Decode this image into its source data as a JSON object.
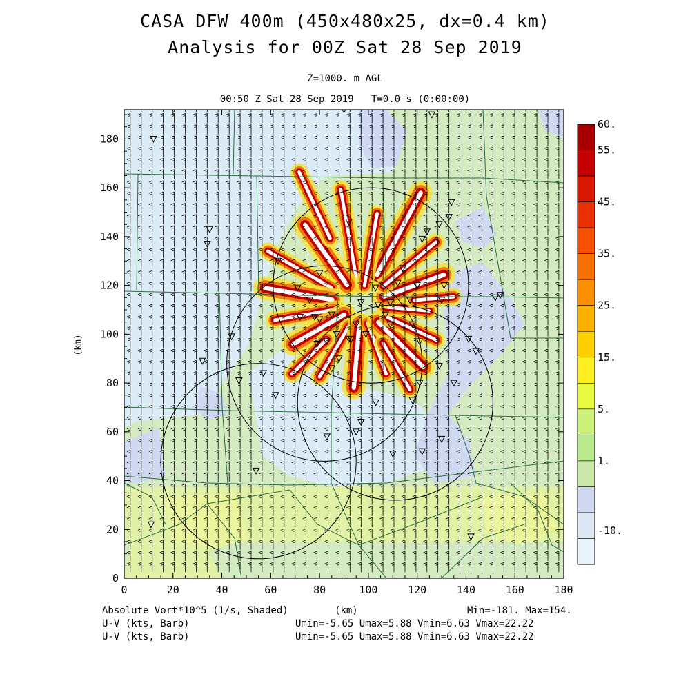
{
  "header": {
    "title_line1": "CASA DFW 400m (450x480x25, dx=0.4 km)",
    "title_line2": "Analysis for 00Z Sat 28 Sep 2019",
    "level": "Z=1000. m AGL",
    "valid_time": "00:50 Z Sat 28 Sep 2019",
    "forecast_time": "T=0.0 s (0:00:00)"
  },
  "map": {
    "x_axis_label": "(km)",
    "y_axis_label": "(km)",
    "x_range_km": [
      0,
      180
    ],
    "y_range_km": [
      0,
      192
    ],
    "x_ticks": [
      0,
      20,
      40,
      60,
      80,
      100,
      120,
      140,
      160,
      180
    ],
    "y_ticks": [
      0,
      20,
      40,
      60,
      80,
      100,
      120,
      140,
      160,
      180
    ],
    "radar_circles_km": [
      {
        "cx": 101,
        "cy": 120,
        "r": 40
      },
      {
        "cx": 82,
        "cy": 88,
        "r": 40
      },
      {
        "cx": 111,
        "cy": 72,
        "r": 40
      },
      {
        "cx": 55,
        "cy": 48,
        "r": 40
      }
    ],
    "stations_km": [
      [
        12,
        180
      ],
      [
        90,
        192
      ],
      [
        126,
        190
      ],
      [
        35,
        143
      ],
      [
        34,
        137
      ],
      [
        44,
        99
      ],
      [
        32,
        89
      ],
      [
        47,
        81
      ],
      [
        57,
        84
      ],
      [
        62,
        75
      ],
      [
        63,
        130
      ],
      [
        71,
        119
      ],
      [
        72,
        107
      ],
      [
        76,
        114
      ],
      [
        78,
        107
      ],
      [
        79,
        96
      ],
      [
        80,
        106
      ],
      [
        80,
        125
      ],
      [
        83,
        97
      ],
      [
        85,
        108
      ],
      [
        85,
        86
      ],
      [
        87,
        100
      ],
      [
        88,
        90
      ],
      [
        92,
        98
      ],
      [
        93,
        98
      ],
      [
        95,
        104
      ],
      [
        97,
        113
      ],
      [
        99,
        100
      ],
      [
        103,
        119
      ],
      [
        104,
        112
      ],
      [
        107,
        108
      ],
      [
        109,
        104
      ],
      [
        109,
        113
      ],
      [
        112,
        121
      ],
      [
        114,
        127
      ],
      [
        117,
        114
      ],
      [
        118,
        104
      ],
      [
        121,
        97
      ],
      [
        120,
        120
      ],
      [
        122,
        139
      ],
      [
        124,
        142
      ],
      [
        129,
        145
      ],
      [
        130,
        114
      ],
      [
        129,
        87
      ],
      [
        131,
        120
      ],
      [
        133,
        148
      ],
      [
        134,
        154
      ],
      [
        135,
        80
      ],
      [
        141,
        98
      ],
      [
        144,
        93
      ],
      [
        154,
        116
      ],
      [
        152,
        115
      ],
      [
        121,
        80
      ],
      [
        118,
        73
      ],
      [
        103,
        72
      ],
      [
        97,
        64
      ],
      [
        95,
        60
      ],
      [
        110,
        51
      ],
      [
        122,
        52
      ],
      [
        130,
        57
      ],
      [
        142,
        17
      ],
      [
        54,
        44
      ],
      [
        11,
        22
      ],
      [
        83,
        58
      ],
      [
        92,
        146
      ]
    ]
  },
  "colorbar": {
    "labels": [
      "60.",
      "55.",
      "45.",
      "35.",
      "25.",
      "15.",
      "5.",
      "1.",
      "-10."
    ],
    "colors": [
      "#a80000",
      "#c40000",
      "#d81800",
      "#e83000",
      "#f55000",
      "#fa7000",
      "#fc9000",
      "#fdb000",
      "#fed000",
      "#fef020",
      "#e8fa40",
      "#cdf27a",
      "#b8e98a",
      "#cce8a8",
      "#d0d8f0",
      "#dce8f4",
      "#e8f4fc"
    ]
  },
  "footer": {
    "left_line1": "Absolute Vort*10^5 (1/s, Shaded)",
    "left_line2": "U-V (kts, Barb)",
    "left_line3": "U-V (kts, Barb)",
    "axis_label": "(km)",
    "minmax": "Min=-181. Max=154.",
    "uv_line1": "Umin=-5.65 Umax=5.88 Vmin=6.63 Vmax=22.22",
    "uv_line2": "Umin=-5.65 Umax=5.88 Vmin=6.63 Vmax=22.22"
  }
}
